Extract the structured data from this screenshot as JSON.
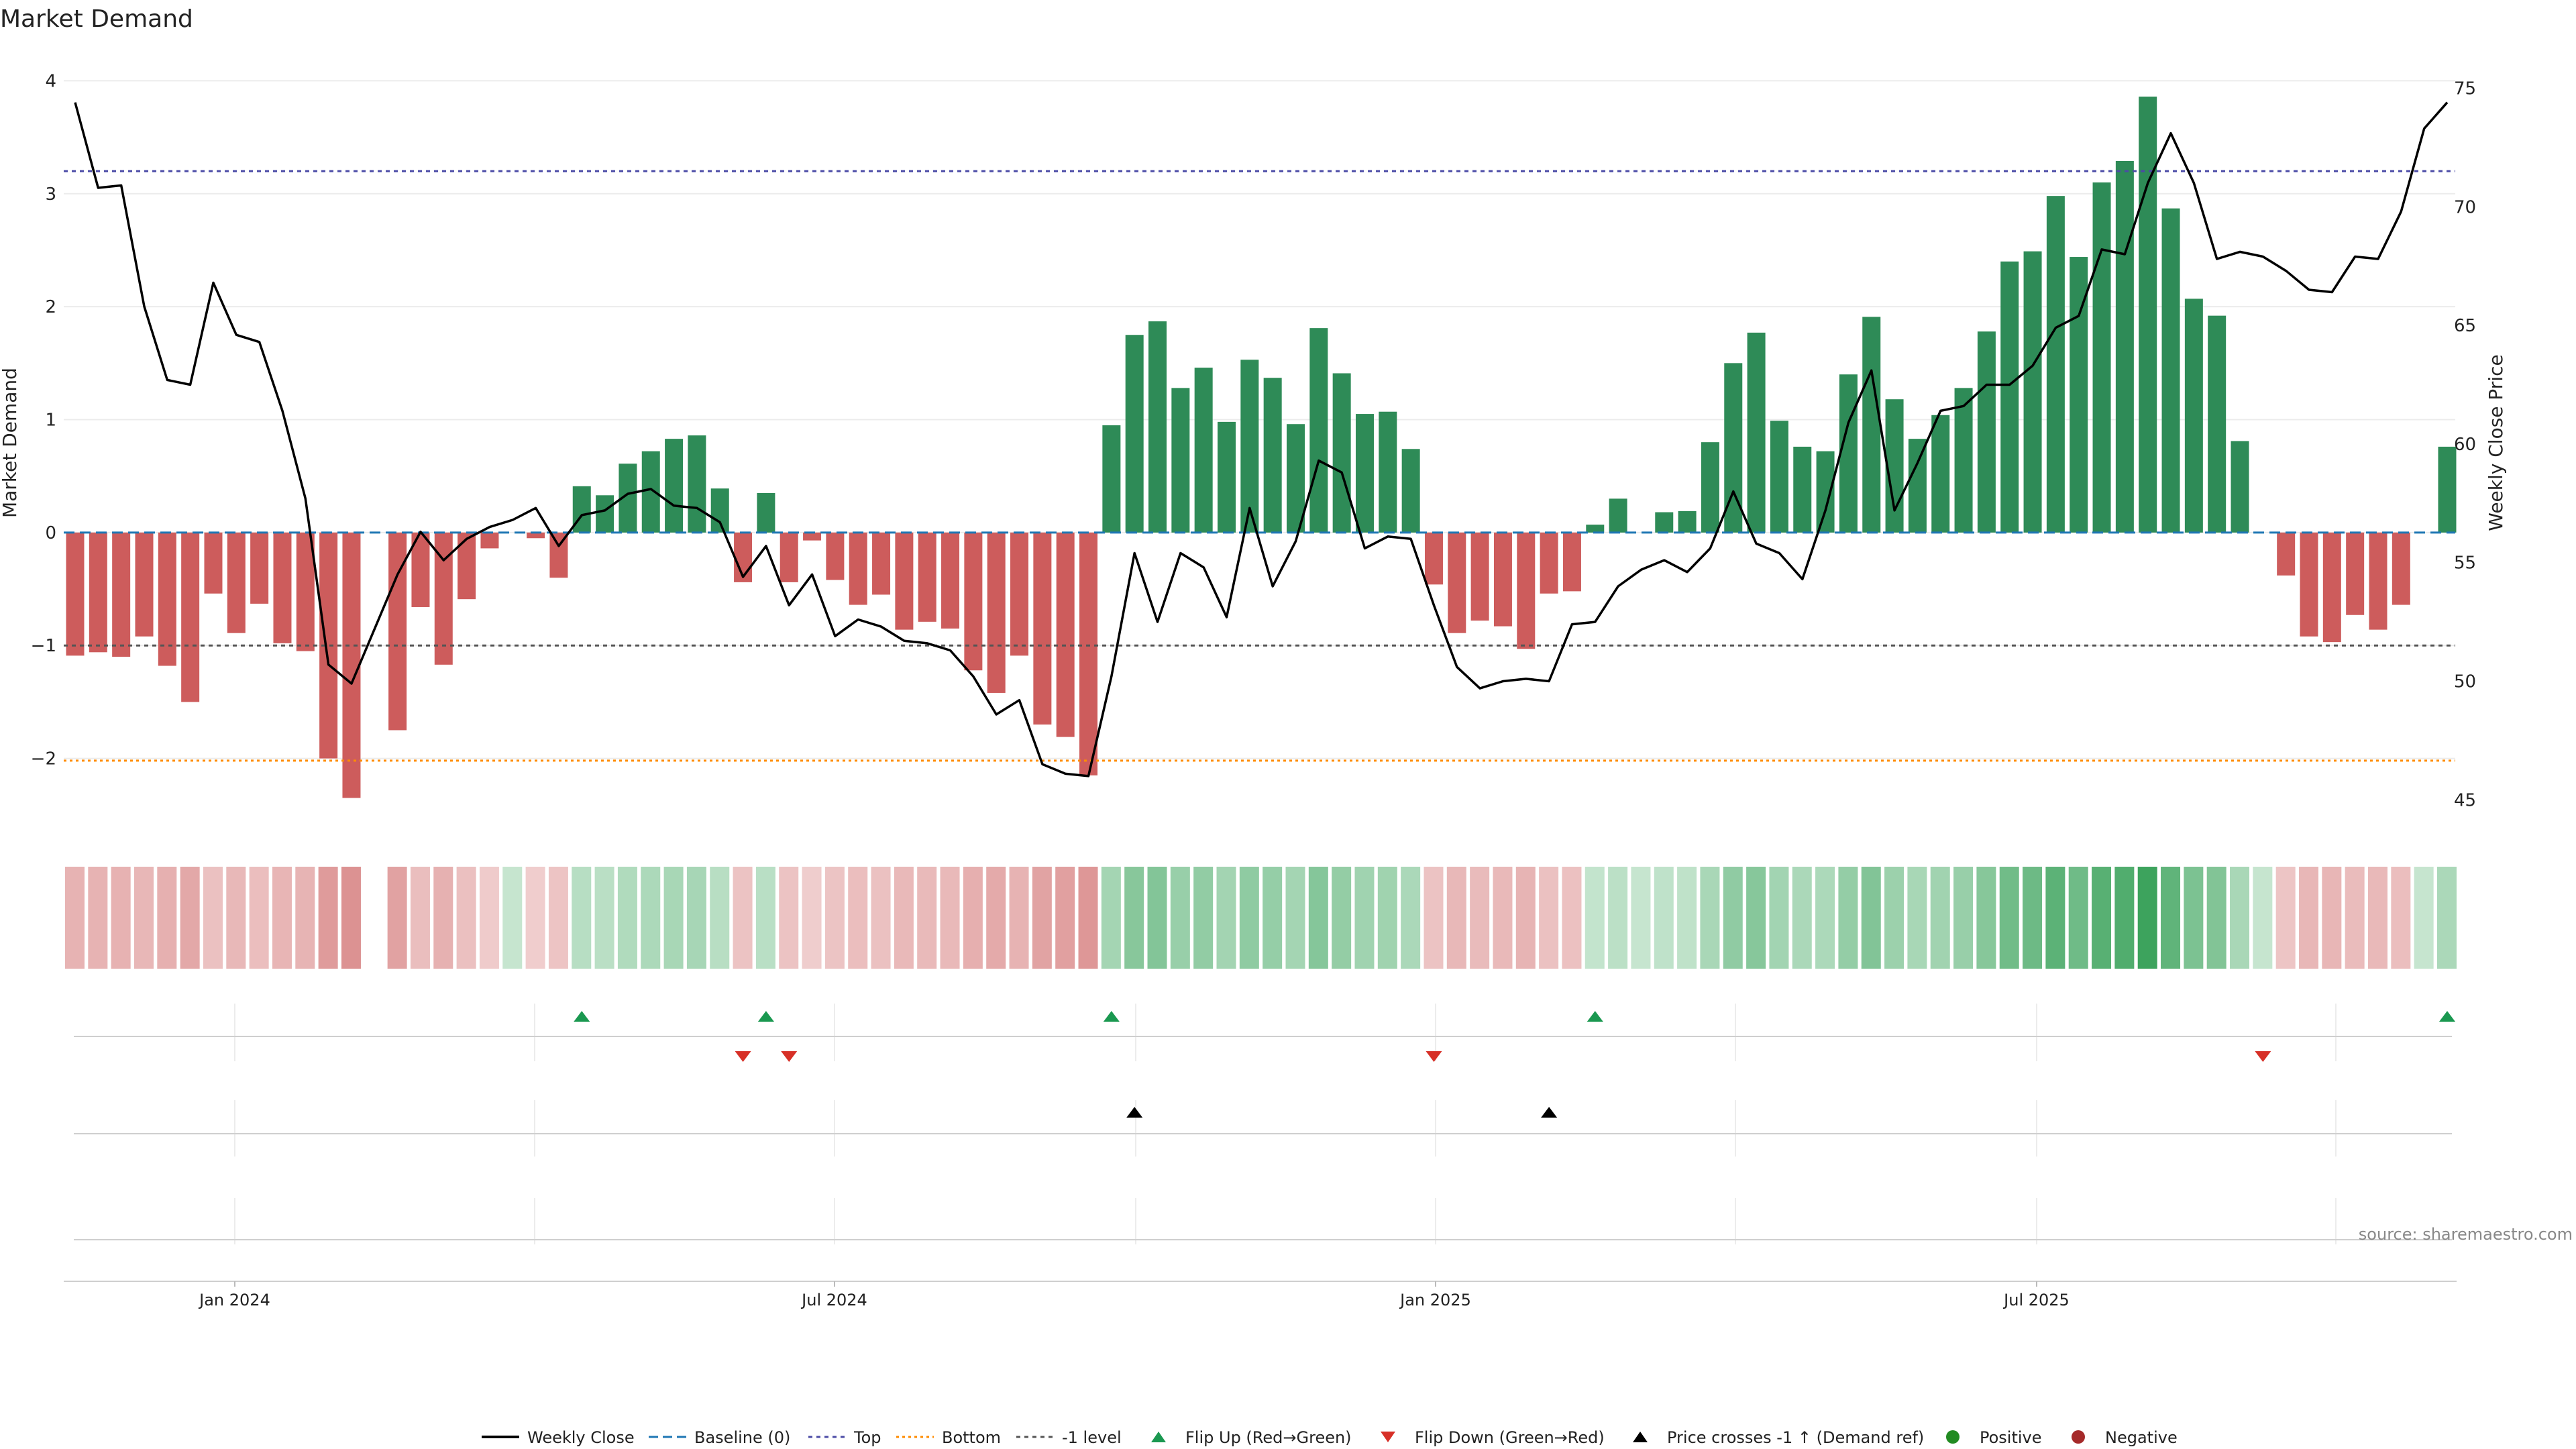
{
  "title": "Market Demand",
  "source": "source: sharemaestro.com",
  "colors": {
    "positive": "#2e8b57",
    "negative": "#cd5c5c",
    "price_line": "#000000",
    "baseline": "#1f77b4",
    "top": "#4b4ba6",
    "bottom": "#ff8c00",
    "minus1": "#555555",
    "flip_up": "#1a9850",
    "flip_down": "#d73027",
    "cross": "#000000",
    "positive_dot": "#228b22",
    "negative_dot": "#a52a2a"
  },
  "chart_data": {
    "type": "bar",
    "title": "Market Demand",
    "ylabel": "Market Demand",
    "y2label": "Weekly Close Price",
    "ylim": [
      -2.65,
      4.05
    ],
    "y2lim": [
      43.65,
      75.55
    ],
    "yticks": [
      4,
      3,
      2,
      1,
      0,
      -1,
      -2
    ],
    "yticklabels": [
      "4",
      "3",
      "2",
      "1",
      "0",
      "−1",
      "−2"
    ],
    "y2ticks": [
      75,
      70,
      65,
      60,
      55,
      50,
      45
    ],
    "y2ticklabels": [
      "75",
      "70",
      "65",
      "60",
      "55",
      "50",
      "45"
    ],
    "xticklabels": [
      "Jan 2024",
      "Jul 2024",
      "Jan 2025",
      "Jul 2025"
    ],
    "xtick_weeks": [
      7,
      33,
      59,
      85
    ],
    "reference_lines": {
      "baseline": 0,
      "top": 3.2,
      "bottom": -2.02,
      "minus1": -1
    },
    "demand": [
      -1.09,
      -1.06,
      -1.1,
      -0.92,
      -1.18,
      -1.5,
      -0.54,
      -0.89,
      -0.63,
      -0.98,
      -1.05,
      -2.0,
      -2.35,
      0,
      -1.75,
      -0.66,
      -1.17,
      -0.59,
      -0.14,
      0,
      -0.05,
      -0.4,
      0.41,
      0.33,
      0.61,
      0.72,
      0.83,
      0.86,
      0.39,
      -0.44,
      0.35,
      -0.44,
      -0.07,
      -0.42,
      -0.64,
      -0.55,
      -0.86,
      -0.79,
      -0.85,
      -1.22,
      -1.42,
      -1.09,
      -1.7,
      -1.81,
      -2.15,
      0.95,
      1.75,
      1.87,
      1.28,
      1.46,
      0.98,
      1.53,
      1.37,
      0.96,
      1.81,
      1.41,
      1.05,
      1.07,
      0.74,
      -0.46,
      -0.89,
      -0.78,
      -0.83,
      -1.03,
      -0.54,
      -0.52,
      0.07,
      0.3,
      0,
      0.18,
      0.19,
      0.8,
      1.5,
      1.77,
      0.99,
      0.76,
      0.72,
      1.4,
      1.91,
      1.18,
      0.83,
      1.04,
      1.28,
      1.78,
      2.4,
      2.49,
      2.98,
      2.44,
      3.1,
      3.29,
      3.86,
      2.87,
      2.07,
      1.92,
      0.81,
      0,
      -0.38,
      -0.92,
      -0.97,
      -0.73,
      -0.86,
      -0.64,
      0,
      0.76
    ],
    "price": [
      74.4,
      70.8,
      70.9,
      65.8,
      62.7,
      62.5,
      66.8,
      64.6,
      64.3,
      61.4,
      57.7,
      50.7,
      49.9,
      52.2,
      54.5,
      56.3,
      55.1,
      56.0,
      56.5,
      56.8,
      57.3,
      55.7,
      57.0,
      57.2,
      57.9,
      58.1,
      57.4,
      57.3,
      56.7,
      54.4,
      55.7,
      53.2,
      54.5,
      51.9,
      52.6,
      52.3,
      51.7,
      51.6,
      51.3,
      50.2,
      48.6,
      49.2,
      46.5,
      46.1,
      46.0,
      50.2,
      55.4,
      52.5,
      55.4,
      54.8,
      52.7,
      57.3,
      54.0,
      55.9,
      59.3,
      58.8,
      55.6,
      56.1,
      56.0,
      53.2,
      50.6,
      49.7,
      50.0,
      50.1,
      50.0,
      52.4,
      52.5,
      54.0,
      54.7,
      55.1,
      54.6,
      55.6,
      58.0,
      55.8,
      55.4,
      54.3,
      57.2,
      60.9,
      63.1,
      57.2,
      59.2,
      61.4,
      61.6,
      62.5,
      62.5,
      63.3,
      64.9,
      65.4,
      68.2,
      68.0,
      71.0,
      73.1,
      71.0,
      67.8,
      68.1,
      67.9,
      67.3,
      66.5,
      66.4,
      67.9,
      67.8,
      69.8,
      73.3,
      74.4
    ],
    "flip_up_weeks": [
      22,
      30,
      45,
      66,
      103
    ],
    "flip_down_weeks": [
      29,
      31,
      59,
      95
    ],
    "cross_weeks": [
      46,
      64
    ]
  },
  "legend": {
    "weekly_close": "Weekly Close",
    "baseline": "Baseline (0)",
    "top": "Top",
    "bottom": "Bottom",
    "minus1": "-1 level",
    "flip_up": "Flip Up (Red→Green)",
    "flip_down": "Flip Down (Green→Red)",
    "price_cross": "Price crosses -1 ↑ (Demand ref)",
    "positive": "Positive",
    "negative": "Negative"
  }
}
